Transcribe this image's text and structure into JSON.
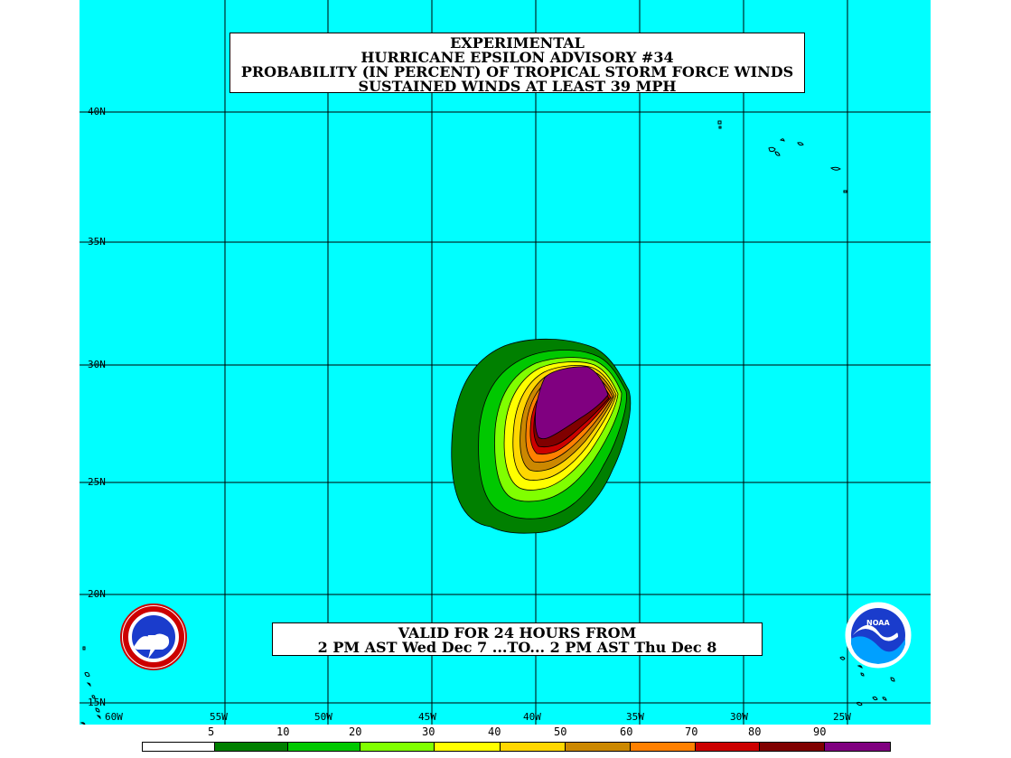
{
  "title": {
    "line1": "EXPERIMENTAL",
    "line2": "HURRICANE EPSILON ADVISORY #34",
    "line3": "PROBABILITY (IN PERCENT) OF TROPICAL STORM FORCE WINDS",
    "line4": "SUSTAINED WINDS AT LEAST 39 MPH"
  },
  "valid": {
    "line1": "VALID FOR 24 HOURS FROM",
    "line2": "2 PM AST Wed Dec 7 ...TO... 2 PM AST Thu Dec 8"
  },
  "axes": {
    "lat_labels": [
      "40N",
      "35N",
      "30N",
      "25N",
      "20N",
      "15N"
    ],
    "lon_labels": [
      "60W",
      "55W",
      "50W",
      "45W",
      "40W",
      "35W",
      "30W",
      "25W"
    ]
  },
  "legend": {
    "labels": [
      "5",
      "10",
      "20",
      "30",
      "40",
      "50",
      "60",
      "70",
      "80",
      "90"
    ],
    "colors": [
      "#ffffff",
      "#008000",
      "#00c800",
      "#80ff00",
      "#ffff00",
      "#ffd700",
      "#cc8800",
      "#ff8000",
      "#cc0000",
      "#800000",
      "#800080"
    ]
  },
  "logos": {
    "left": "noaa-national-weather-service-logo",
    "right": "noaa-logo",
    "right_text": "NOAA"
  },
  "colors": {
    "ocean": "#00ffff",
    "grid": "#000000",
    "box": "#ffffff"
  }
}
